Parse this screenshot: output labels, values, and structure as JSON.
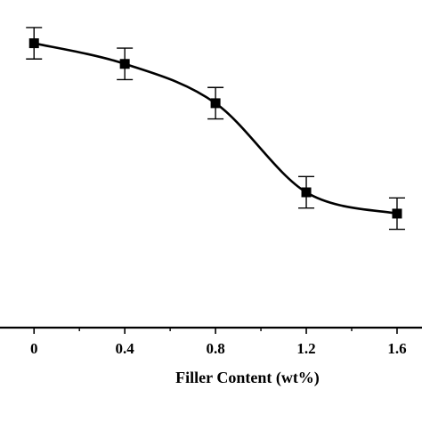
{
  "chart_data": {
    "type": "line",
    "title": "",
    "xlabel": "Filler Content (wt%)",
    "ylabel": "",
    "x": [
      0,
      0.4,
      0.8,
      1.2,
      1.6
    ],
    "xticks": [
      "0",
      "0.4",
      "0.8",
      "1.2",
      "1.6"
    ],
    "xlim": [
      -0.15,
      1.71
    ],
    "ylim": [
      0,
      1
    ],
    "series": [
      {
        "values": [
          0.868,
          0.805,
          0.685,
          0.413,
          0.348
        ],
        "error": [
          0.048,
          0.048,
          0.048,
          0.048,
          0.048
        ],
        "color": "#000000",
        "marker": "square"
      }
    ],
    "grid": false,
    "legend": false
  }
}
